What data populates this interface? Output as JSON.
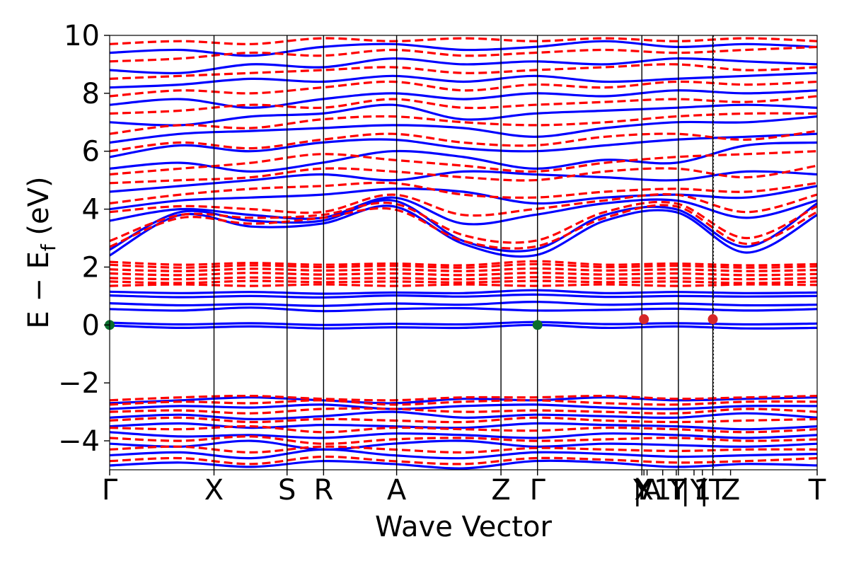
{
  "chart_data": {
    "type": "line",
    "title": "",
    "xlabel": "Wave Vector",
    "ylabel_main": "E − E",
    "ylabel_sub": "f",
    "ylabel_unit": " (eV)",
    "ylim": [
      -5,
      10
    ],
    "yticks": [
      -4,
      -2,
      0,
      2,
      4,
      6,
      8,
      10
    ],
    "ytick_labels": [
      "−4",
      "−2",
      "0",
      "2",
      "4",
      "6",
      "8",
      "10"
    ],
    "kpath": [
      {
        "label": "Γ",
        "x": 0.0
      },
      {
        "label": "X",
        "x": 1.0
      },
      {
        "label": "S",
        "x": 1.7
      },
      {
        "label": "R",
        "x": 2.05
      },
      {
        "label": "A",
        "x": 2.75
      },
      {
        "label": "Z",
        "x": 3.75
      },
      {
        "label": "Γ",
        "x": 4.1
      },
      {
        "label": "Y",
        "x": 5.1
      },
      {
        "label": "X",
        "x": 5.12
      },
      {
        "label": "|A",
        "x": 5.15
      },
      {
        "label": "1",
        "x": 5.3
      },
      {
        "label": "T",
        "x": 5.43
      },
      {
        "label": "Y",
        "x": 5.45
      },
      {
        "label": "|Y",
        "x": 5.6
      },
      {
        "label": "1",
        "x": 5.68
      },
      {
        "label": "|T",
        "x": 5.78
      },
      {
        "label": "Z",
        "x": 5.95
      },
      {
        "label": "T",
        "x": 6.78
      }
    ],
    "xlim": [
      0,
      6.78
    ],
    "vlines": [
      1.0,
      1.7,
      2.05,
      2.75,
      3.75,
      4.1,
      5.1,
      5.45,
      5.78
    ],
    "dotted_vline": 5.78,
    "series": [
      {
        "style": "solid",
        "color": "#0000ff",
        "bands": [
          [
            -4.85,
            -4.75,
            -4.9,
            -4.7,
            -4.8,
            -4.95,
            -4.7,
            -4.75,
            -4.9,
            -4.8,
            -4.85
          ],
          [
            -4.5,
            -4.4,
            -4.6,
            -4.3,
            -4.5,
            -4.6,
            -4.4,
            -4.45,
            -4.55,
            -4.5,
            -4.45
          ],
          [
            -4.1,
            -4.2,
            -4.0,
            -4.3,
            -4.1,
            -4.0,
            -4.2,
            -4.1,
            -4.15,
            -4.2,
            -4.1
          ],
          [
            -3.7,
            -3.85,
            -3.8,
            -3.9,
            -3.75,
            -3.8,
            -3.9,
            -3.75,
            -3.8,
            -3.9,
            -3.8
          ],
          [
            -3.5,
            -3.4,
            -3.55,
            -3.45,
            -3.5,
            -3.55,
            -3.4,
            -3.45,
            -3.5,
            -3.6,
            -3.5
          ],
          [
            -3.2,
            -3.1,
            -3.25,
            -3.15,
            -3.0,
            -3.2,
            -3.1,
            -3.15,
            -3.2,
            -3.05,
            -3.2
          ],
          [
            -2.9,
            -2.8,
            -2.85,
            -2.75,
            -2.9,
            -2.8,
            -2.75,
            -2.85,
            -2.9,
            -2.8,
            -2.8
          ],
          [
            -2.7,
            -2.6,
            -2.5,
            -2.6,
            -2.7,
            -2.55,
            -2.6,
            -2.5,
            -2.6,
            -2.55,
            -2.5
          ],
          [
            -0.02,
            -0.1,
            -0.05,
            -0.12,
            -0.08,
            -0.1,
            0.0,
            -0.1,
            -0.05,
            -0.12,
            -0.1
          ],
          [
            0.08,
            0.02,
            0.06,
            0.0,
            0.04,
            0.02,
            0.1,
            0.03,
            0.06,
            0.02,
            0.05
          ],
          [
            0.55,
            0.5,
            0.6,
            0.48,
            0.55,
            0.58,
            0.5,
            0.52,
            0.56,
            0.5,
            0.55
          ],
          [
            0.75,
            0.68,
            0.72,
            0.66,
            0.74,
            0.7,
            0.8,
            0.7,
            0.74,
            0.68,
            0.7
          ],
          [
            1.02,
            0.96,
            1.0,
            0.95,
            1.02,
            0.98,
            1.05,
            0.97,
            1.0,
            0.98,
            1.0
          ],
          [
            1.15,
            1.1,
            1.14,
            1.08,
            1.12,
            1.1,
            1.2,
            1.1,
            1.14,
            1.1,
            1.12
          ],
          [
            2.4,
            3.8,
            3.4,
            3.5,
            4.1,
            2.8,
            2.4,
            3.6,
            3.9,
            2.5,
            3.8
          ],
          [
            2.6,
            3.9,
            3.6,
            3.6,
            4.3,
            2.9,
            2.6,
            3.8,
            4.0,
            2.7,
            4.2
          ],
          [
            3.6,
            4.0,
            3.8,
            3.7,
            4.4,
            3.5,
            3.8,
            4.2,
            4.3,
            3.7,
            4.3
          ],
          [
            4.0,
            4.3,
            4.4,
            4.5,
            4.7,
            4.6,
            4.2,
            4.4,
            4.5,
            4.4,
            4.8
          ],
          [
            4.6,
            4.8,
            5.0,
            5.2,
            5.0,
            5.3,
            5.2,
            5.1,
            5.0,
            5.3,
            5.2
          ],
          [
            5.4,
            5.6,
            5.3,
            5.6,
            6.0,
            5.8,
            5.4,
            5.7,
            5.6,
            6.2,
            6.3
          ],
          [
            5.8,
            6.2,
            6.0,
            6.3,
            6.4,
            6.1,
            6.0,
            6.2,
            6.4,
            6.5,
            6.6
          ],
          [
            6.3,
            6.6,
            6.7,
            6.8,
            6.9,
            6.8,
            6.5,
            6.8,
            7.0,
            7.0,
            7.2
          ],
          [
            7.0,
            6.9,
            7.2,
            7.3,
            7.6,
            7.1,
            7.3,
            7.4,
            7.5,
            7.6,
            7.5
          ],
          [
            7.6,
            7.8,
            7.5,
            7.8,
            8.0,
            7.8,
            8.0,
            7.9,
            8.1,
            8.0,
            8.1
          ],
          [
            8.2,
            8.3,
            8.5,
            8.4,
            8.6,
            8.4,
            8.6,
            8.4,
            8.5,
            8.6,
            8.7
          ],
          [
            8.8,
            8.7,
            9.0,
            8.9,
            9.2,
            9.0,
            9.1,
            9.0,
            9.2,
            9.1,
            9.0
          ],
          [
            9.4,
            9.5,
            9.3,
            9.6,
            9.7,
            9.5,
            9.6,
            9.8,
            9.6,
            9.7,
            9.6
          ]
        ]
      },
      {
        "style": "dashed",
        "color": "#ff0000",
        "bands": [
          [
            -4.7,
            -4.6,
            -4.8,
            -4.55,
            -4.7,
            -4.8,
            -4.6,
            -4.65,
            -4.75,
            -4.7,
            -4.6
          ],
          [
            -4.3,
            -4.2,
            -4.4,
            -4.2,
            -4.3,
            -4.4,
            -4.25,
            -4.3,
            -4.35,
            -4.3,
            -4.3
          ],
          [
            -3.9,
            -4.0,
            -3.85,
            -4.1,
            -3.95,
            -3.9,
            -4.0,
            -3.95,
            -3.9,
            -4.0,
            -3.95
          ],
          [
            -3.55,
            -3.6,
            -3.5,
            -3.7,
            -3.55,
            -3.6,
            -3.65,
            -3.55,
            -3.6,
            -3.7,
            -3.6
          ],
          [
            -3.3,
            -3.2,
            -3.35,
            -3.25,
            -3.3,
            -3.35,
            -3.2,
            -3.3,
            -3.35,
            -3.3,
            -3.25
          ],
          [
            -3.0,
            -2.95,
            -3.05,
            -2.9,
            -2.9,
            -3.0,
            -2.95,
            -3.0,
            -3.05,
            -2.9,
            -3.0
          ],
          [
            -2.75,
            -2.65,
            -2.7,
            -2.6,
            -2.75,
            -2.65,
            -2.6,
            -2.7,
            -2.75,
            -2.65,
            -2.65
          ],
          [
            -2.6,
            -2.5,
            -2.45,
            -2.55,
            -2.6,
            -2.5,
            -2.5,
            -2.45,
            -2.55,
            -2.5,
            -2.45
          ],
          [
            1.35,
            1.4,
            1.35,
            1.4,
            1.35,
            1.4,
            1.35,
            1.4,
            1.35,
            1.4,
            1.38
          ],
          [
            1.5,
            1.45,
            1.52,
            1.48,
            1.5,
            1.47,
            1.52,
            1.48,
            1.5,
            1.45,
            1.5
          ],
          [
            1.62,
            1.58,
            1.64,
            1.6,
            1.62,
            1.58,
            1.65,
            1.6,
            1.62,
            1.58,
            1.62
          ],
          [
            1.78,
            1.72,
            1.8,
            1.74,
            1.78,
            1.72,
            1.8,
            1.74,
            1.78,
            1.72,
            1.76
          ],
          [
            1.92,
            1.86,
            1.94,
            1.88,
            1.92,
            1.86,
            1.95,
            1.88,
            1.92,
            1.86,
            1.9
          ],
          [
            2.08,
            1.98,
            2.06,
            2.0,
            2.04,
            1.98,
            2.1,
            2.0,
            2.04,
            1.98,
            2.02
          ],
          [
            2.18,
            2.08,
            2.14,
            2.08,
            2.12,
            2.06,
            2.2,
            2.08,
            2.12,
            2.06,
            2.1
          ],
          [
            2.7,
            3.7,
            3.5,
            3.7,
            4.0,
            2.9,
            2.7,
            3.7,
            4.1,
            2.8,
            3.9
          ],
          [
            2.9,
            3.8,
            3.7,
            3.8,
            4.2,
            3.1,
            2.9,
            3.9,
            4.2,
            3.0,
            4.1
          ],
          [
            3.9,
            4.1,
            4.0,
            3.9,
            4.5,
            3.8,
            4.0,
            4.3,
            4.5,
            3.9,
            4.5
          ],
          [
            4.2,
            4.5,
            4.7,
            4.8,
            4.9,
            4.5,
            4.4,
            4.6,
            4.7,
            4.6,
            4.9
          ],
          [
            4.9,
            5.0,
            5.1,
            5.4,
            5.3,
            5.1,
            5.0,
            5.3,
            5.4,
            5.1,
            5.5
          ],
          [
            5.2,
            5.4,
            5.6,
            5.9,
            5.7,
            5.5,
            5.3,
            5.6,
            5.8,
            5.9,
            6.0
          ],
          [
            6.0,
            6.3,
            6.1,
            6.4,
            6.6,
            6.3,
            6.2,
            6.5,
            6.6,
            6.4,
            6.7
          ],
          [
            6.6,
            6.9,
            6.8,
            7.1,
            7.2,
            7.0,
            6.9,
            7.0,
            7.2,
            7.3,
            7.3
          ],
          [
            7.3,
            7.4,
            7.6,
            7.5,
            7.8,
            7.5,
            7.6,
            7.7,
            7.8,
            7.7,
            7.9
          ],
          [
            7.9,
            8.1,
            8.0,
            8.2,
            8.4,
            8.1,
            8.3,
            8.2,
            8.4,
            8.3,
            8.4
          ],
          [
            8.5,
            8.6,
            8.7,
            8.8,
            8.9,
            8.7,
            8.8,
            8.9,
            9.0,
            8.8,
            8.9
          ],
          [
            9.1,
            9.2,
            9.4,
            9.3,
            9.5,
            9.3,
            9.4,
            9.5,
            9.4,
            9.5,
            9.6
          ],
          [
            9.7,
            9.8,
            9.7,
            9.9,
            9.8,
            9.9,
            9.8,
            9.9,
            9.8,
            9.9,
            9.8
          ]
        ]
      }
    ],
    "markers": [
      {
        "x": 0.0,
        "y": 0.0,
        "color": "#0a6e2e"
      },
      {
        "x": 4.1,
        "y": 0.0,
        "color": "#0a6e2e"
      },
      {
        "x": 5.12,
        "y": 0.2,
        "color": "#d62728"
      },
      {
        "x": 5.78,
        "y": 0.2,
        "color": "#d62728"
      }
    ]
  }
}
